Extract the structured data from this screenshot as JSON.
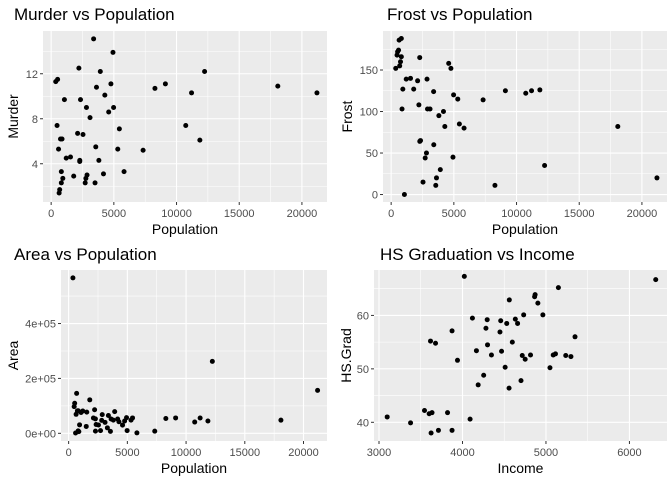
{
  "chart_data": [
    {
      "type": "scatter",
      "title": "Murder vs Population",
      "xlabel": "Population",
      "ylabel": "Murder",
      "xlim": [
        -650,
        22000
      ],
      "ylim": [
        0.6,
        15.8
      ],
      "xticks": [
        0,
        5000,
        10000,
        15000,
        20000
      ],
      "yticks": [
        4,
        8,
        12
      ],
      "xgrid_minor": [
        2500,
        7500,
        12500,
        17500
      ],
      "ygrid_minor": [
        2,
        6,
        10,
        14
      ],
      "grid": true,
      "points": [
        [
          365,
          11.3
        ],
        [
          472,
          7.4
        ],
        [
          515,
          11.5
        ],
        [
          590,
          5.3
        ],
        [
          637,
          1.4
        ],
        [
          681,
          1.7
        ],
        [
          746,
          6.2
        ],
        [
          812,
          2.3
        ],
        [
          813,
          3.3
        ],
        [
          868,
          6.2
        ],
        [
          931,
          2.7
        ],
        [
          1058,
          9.7
        ],
        [
          1203,
          4.5
        ],
        [
          1544,
          4.6
        ],
        [
          1799,
          2.9
        ],
        [
          2110,
          6.7
        ],
        [
          2212,
          12.5
        ],
        [
          2280,
          4.2
        ],
        [
          2284,
          4.3
        ],
        [
          2341,
          9.7
        ],
        [
          2541,
          6.6
        ],
        [
          2715,
          2.3
        ],
        [
          2816,
          9.0
        ],
        [
          2861,
          3.0
        ],
        [
          3100,
          8.1
        ],
        [
          3387,
          15.1
        ],
        [
          3559,
          5.5
        ],
        [
          3615,
          10.8
        ],
        [
          3806,
          4.3
        ],
        [
          3921,
          12.2
        ],
        [
          4589,
          8.6
        ],
        [
          4173,
          3.1
        ],
        [
          4281,
          10.1
        ],
        [
          4767,
          11.1
        ],
        [
          4931,
          13.9
        ],
        [
          5313,
          5.3
        ],
        [
          5441,
          7.1
        ],
        [
          5814,
          3.3
        ],
        [
          4981,
          9.0
        ],
        [
          7333,
          5.2
        ],
        [
          8277,
          10.7
        ],
        [
          9111,
          11.1
        ],
        [
          10735,
          7.4
        ],
        [
          11197,
          10.3
        ],
        [
          11860,
          6.1
        ],
        [
          12237,
          12.2
        ],
        [
          18076,
          10.9
        ],
        [
          21198,
          10.3
        ],
        [
          2770,
          2.7
        ],
        [
          3500,
          2.3
        ]
      ]
    },
    {
      "type": "scatter",
      "title": "Frost vs Population",
      "xlabel": "Population",
      "ylabel": "Frost",
      "xlim": [
        -650,
        22000
      ],
      "ylim": [
        -9,
        197
      ],
      "xticks": [
        0,
        5000,
        10000,
        15000,
        20000
      ],
      "yticks": [
        0,
        50,
        100,
        150
      ],
      "xgrid_minor": [
        2500,
        7500,
        12500,
        17500
      ],
      "ygrid_minor": [
        25,
        75,
        125,
        175
      ],
      "grid": true,
      "points": [
        [
          365,
          152
        ],
        [
          472,
          168
        ],
        [
          515,
          172
        ],
        [
          590,
          174
        ],
        [
          637,
          186
        ],
        [
          681,
          155
        ],
        [
          746,
          160
        ],
        [
          812,
          188
        ],
        [
          813,
          166
        ],
        [
          868,
          103
        ],
        [
          931,
          127
        ],
        [
          1058,
          0
        ],
        [
          1203,
          139
        ],
        [
          1544,
          140
        ],
        [
          1799,
          127
        ],
        [
          2110,
          137
        ],
        [
          2212,
          108
        ],
        [
          2280,
          165
        ],
        [
          2284,
          64
        ],
        [
          2341,
          65
        ],
        [
          2541,
          15
        ],
        [
          2715,
          44
        ],
        [
          2816,
          50
        ],
        [
          2861,
          139
        ],
        [
          3100,
          103
        ],
        [
          3387,
          124
        ],
        [
          3559,
          11
        ],
        [
          3615,
          20
        ],
        [
          3806,
          95
        ],
        [
          3921,
          30
        ],
        [
          4589,
          158
        ],
        [
          4173,
          100
        ],
        [
          4281,
          82
        ],
        [
          4767,
          152
        ],
        [
          4931,
          45
        ],
        [
          5313,
          115
        ],
        [
          5441,
          85
        ],
        [
          5814,
          80
        ],
        [
          4981,
          120
        ],
        [
          7333,
          114
        ],
        [
          8277,
          11
        ],
        [
          9111,
          125
        ],
        [
          10735,
          122
        ],
        [
          11197,
          125
        ],
        [
          11860,
          126
        ],
        [
          12237,
          35
        ],
        [
          18076,
          82
        ],
        [
          21198,
          20
        ],
        [
          2900,
          103
        ],
        [
          3400,
          60
        ]
      ]
    },
    {
      "type": "scatter",
      "title": "Area vs Population",
      "xlabel": "Population",
      "ylabel": "Area",
      "xlim": [
        -650,
        22000
      ],
      "ylim": [
        -28000,
        595000
      ],
      "xticks": [
        0,
        5000,
        10000,
        15000,
        20000
      ],
      "yticks": [
        0,
        200000,
        400000
      ],
      "ytick_labels": [
        "0e+00",
        "2e+05",
        "4e+05"
      ],
      "xgrid_minor": [
        2500,
        7500,
        12500,
        17500
      ],
      "ygrid_minor": [
        100000,
        300000,
        500000
      ],
      "grid": true,
      "points": [
        [
          365,
          566432
        ],
        [
          472,
          97203
        ],
        [
          515,
          109601
        ],
        [
          590,
          1049
        ],
        [
          637,
          69273
        ],
        [
          681,
          145587
        ],
        [
          746,
          81787
        ],
        [
          812,
          9027
        ],
        [
          813,
          82096
        ],
        [
          868,
          6138
        ],
        [
          931,
          30920
        ],
        [
          1058,
          75955
        ],
        [
          1203,
          81276
        ],
        [
          1544,
          77227
        ],
        [
          1799,
          122000
        ],
        [
          2110,
          55941
        ],
        [
          2212,
          86000
        ],
        [
          2280,
          52525
        ],
        [
          2284,
          8000
        ],
        [
          2341,
          32000
        ],
        [
          2541,
          30225
        ],
        [
          2715,
          9891
        ],
        [
          2816,
          47000
        ],
        [
          2861,
          68000
        ],
        [
          3100,
          40000
        ],
        [
          3387,
          65000
        ],
        [
          3559,
          7000
        ],
        [
          3615,
          52000
        ],
        [
          3806,
          48000
        ],
        [
          3921,
          79000
        ],
        [
          4589,
          30000
        ],
        [
          4173,
          52000
        ],
        [
          4281,
          42000
        ],
        [
          4767,
          45000
        ],
        [
          4931,
          57000
        ],
        [
          5313,
          48000
        ],
        [
          5441,
          56000
        ],
        [
          5814,
          1600
        ],
        [
          4981,
          10000
        ],
        [
          7333,
          7800
        ],
        [
          8277,
          54000
        ],
        [
          9111,
          56000
        ],
        [
          10735,
          41000
        ],
        [
          11197,
          55748
        ],
        [
          11860,
          44966
        ],
        [
          12237,
          262134
        ],
        [
          18076,
          47831
        ],
        [
          21198,
          156361
        ],
        [
          1500,
          25000
        ],
        [
          3300,
          20000
        ]
      ]
    },
    {
      "type": "scatter",
      "title": "HS Graduation vs Income",
      "xlabel": "Income",
      "ylabel": "HS.Grad",
      "xlim": [
        2940,
        6450
      ],
      "ylim": [
        36.5,
        68.5
      ],
      "xticks": [
        3000,
        4000,
        5000,
        6000
      ],
      "yticks": [
        40,
        50,
        60
      ],
      "xgrid_minor": [
        3500,
        4500,
        5500
      ],
      "ygrid_minor": [
        45,
        55,
        65
      ],
      "grid": true,
      "points": [
        [
          3098,
          41.0
        ],
        [
          3378,
          39.9
        ],
        [
          3545,
          42.2
        ],
        [
          3601,
          41.6
        ],
        [
          3617,
          55.2
        ],
        [
          3624,
          38.0
        ],
        [
          3635,
          41.8
        ],
        [
          3677,
          54.8
        ],
        [
          3712,
          38.5
        ],
        [
          3821,
          41.8
        ],
        [
          3875,
          57.1
        ],
        [
          3875,
          38.5
        ],
        [
          3940,
          51.6
        ],
        [
          4022,
          67.3
        ],
        [
          4091,
          40.6
        ],
        [
          4119,
          59.5
        ],
        [
          4167,
          53.4
        ],
        [
          4188,
          47.0
        ],
        [
          4254,
          48.8
        ],
        [
          4281,
          57.6
        ],
        [
          4296,
          59.2
        ],
        [
          4347,
          52.6
        ],
        [
          4449,
          56.9
        ],
        [
          4458,
          59.0
        ],
        [
          4468,
          53.3
        ],
        [
          4511,
          50.3
        ],
        [
          4530,
          58.5
        ],
        [
          4558,
          46.4
        ],
        [
          4561,
          62.9
        ],
        [
          4633,
          59.3
        ],
        [
          4660,
          58.5
        ],
        [
          4701,
          47.8
        ],
        [
          4716,
          52.5
        ],
        [
          4733,
          60.1
        ],
        [
          4751,
          51.8
        ],
        [
          4815,
          52.6
        ],
        [
          4864,
          63.5
        ],
        [
          4870,
          63.9
        ],
        [
          4903,
          62.3
        ],
        [
          4963,
          60.1
        ],
        [
          5048,
          50.2
        ],
        [
          5087,
          52.6
        ],
        [
          5114,
          52.8
        ],
        [
          5149,
          65.2
        ],
        [
          5237,
          52.5
        ],
        [
          5299,
          52.3
        ],
        [
          5348,
          56.0
        ],
        [
          6315,
          66.7
        ],
        [
          4597,
          55.0
        ],
        [
          4300,
          54.5
        ]
      ]
    }
  ]
}
